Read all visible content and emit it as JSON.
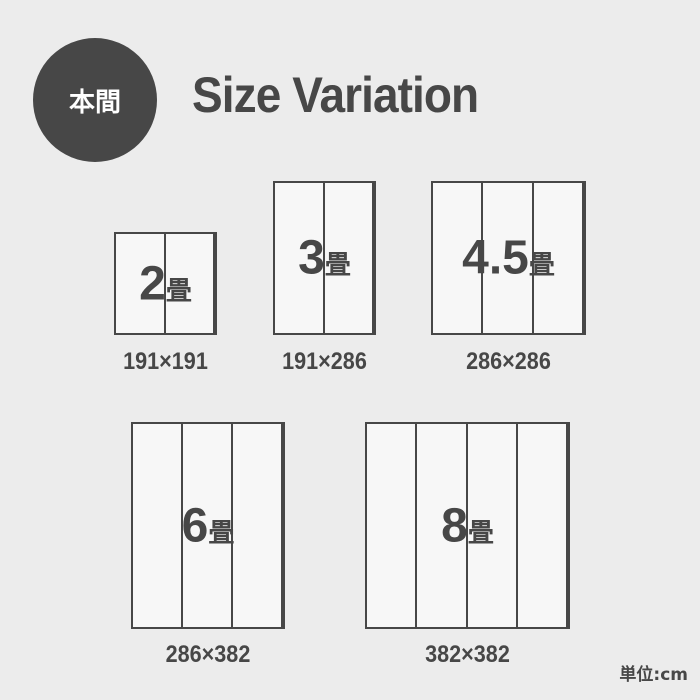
{
  "badge": "本間",
  "title": "Size Variation",
  "mats": [
    {
      "num": "2",
      "unit": "畳",
      "size": "191×191",
      "panels": 2
    },
    {
      "num": "3",
      "unit": "畳",
      "size": "191×286",
      "panels": 2
    },
    {
      "num": "4.5",
      "unit": "畳",
      "size": "286×286",
      "panels": 3
    },
    {
      "num": "6",
      "unit": "畳",
      "size": "286×382",
      "panels": 3
    },
    {
      "num": "8",
      "unit": "畳",
      "size": "382×382",
      "panels": 4
    }
  ],
  "unit_note": "単位:cm",
  "colors": {
    "ink": "#474747",
    "background": "#ececec",
    "mat": "#f7f7f7"
  }
}
